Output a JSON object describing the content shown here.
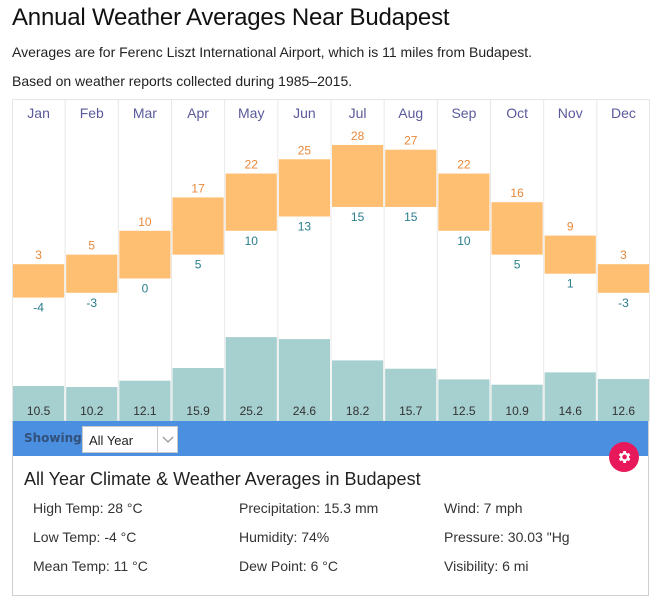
{
  "header": {
    "title": "Annual Weather Averages Near Budapest",
    "subtitle1": "Averages are for Ferenc Liszt International Airport, which is 11 miles from Budapest.",
    "subtitle2": "Based on weather reports collected during 1985–2015."
  },
  "colors": {
    "temp_bar": "#ffbf73",
    "high_label": "#e8883a",
    "low_label": "#2a7d8c",
    "precip_bar": "#a6cfcf",
    "month_label": "#5a5a9a",
    "showing_bar": "#4a8fe0",
    "gear_button": "#e8195b"
  },
  "chart_data": {
    "type": "bar",
    "title": "Annual Weather Averages Near Budapest",
    "categories": [
      "Jan",
      "Feb",
      "Mar",
      "Apr",
      "May",
      "Jun",
      "Jul",
      "Aug",
      "Sep",
      "Oct",
      "Nov",
      "Dec"
    ],
    "series": [
      {
        "name": "High Temp (°C)",
        "values": [
          3,
          5,
          10,
          17,
          22,
          25,
          28,
          27,
          22,
          16,
          9,
          3
        ]
      },
      {
        "name": "Low Temp (°C)",
        "values": [
          -4,
          -3,
          0,
          5,
          10,
          13,
          15,
          15,
          10,
          5,
          1,
          -3
        ]
      },
      {
        "name": "Precipitation (mm)",
        "values": [
          10.5,
          10.2,
          12.1,
          15.9,
          25.2,
          24.6,
          18.2,
          15.7,
          12.5,
          10.9,
          14.6,
          12.6
        ]
      }
    ],
    "temp_range": [
      -8,
      36
    ],
    "precip_range": [
      0,
      30
    ],
    "grid": true,
    "legend": "none"
  },
  "controls": {
    "showing_label": "Showing:",
    "showing_value": "All Year",
    "settings_icon": "gear-icon",
    "dropdown_icon": "chevron-down-icon"
  },
  "summary": {
    "title": "All Year Climate & Weather Averages in Budapest",
    "stats": [
      "High Temp: 28 °C",
      "Precipitation: 15.3 mm",
      "Wind: 7 mph",
      "Low Temp: -4 °C",
      "Humidity: 74%",
      "Pressure: 30.03 \"Hg",
      "Mean Temp: 11 °C",
      "Dew Point: 6 °C",
      "Visibility: 6 mi"
    ]
  }
}
